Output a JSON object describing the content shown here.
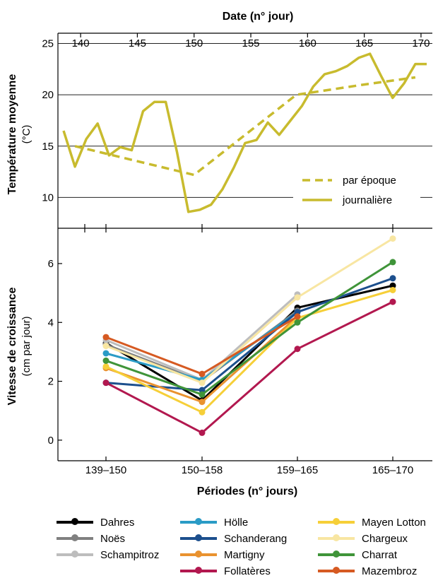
{
  "chart_data": [
    {
      "type": "line",
      "title": "",
      "top_axis_label": "Date (n° jour)",
      "ylabel": "Température moyenne",
      "ylabel_unit": "(°C)",
      "xlim": [
        138,
        171
      ],
      "ylim": [
        7,
        26
      ],
      "xticks": [
        "140",
        "145",
        "150",
        "155",
        "160",
        "165",
        "170"
      ],
      "yticks": [
        "10",
        "15",
        "20",
        "25"
      ],
      "grid": "horizontal",
      "legend_position": "bottom-right",
      "line_color": "#c8bb2e",
      "series": [
        {
          "name": "par époque",
          "style": "dashed",
          "x": [
            139.5,
            150,
            159,
            165,
            169.5
          ],
          "y": [
            15.0,
            12.2,
            20.0,
            21.0,
            21.7
          ]
        },
        {
          "name": "journalière",
          "style": "solid",
          "x": [
            138.5,
            139.5,
            140.5,
            141.5,
            142.5,
            143.5,
            144.5,
            145.5,
            146.5,
            147.5,
            148.5,
            149.5,
            150.5,
            151.5,
            152.5,
            153.5,
            154.5,
            155.5,
            156.5,
            157.5,
            158.5,
            159.5,
            160.5,
            161.5,
            162.5,
            163.5,
            164.5,
            165.5,
            166.5,
            167.5,
            168.5,
            169.5,
            170.5
          ],
          "y": [
            16.5,
            13.0,
            15.7,
            17.2,
            14.1,
            14.9,
            14.6,
            18.4,
            19.3,
            19.3,
            14.4,
            8.6,
            8.8,
            9.3,
            10.8,
            12.9,
            15.3,
            15.6,
            17.3,
            16.1,
            17.5,
            18.9,
            20.8,
            22.0,
            22.3,
            22.8,
            23.6,
            24.0,
            21.8,
            19.7,
            21.1,
            23.0,
            23.0
          ]
        }
      ]
    },
    {
      "type": "line",
      "title": "",
      "xlabel": "Périodes (n° jours)",
      "ylabel": "Vitesse de croissance",
      "ylabel_unit": "(cm par jour)",
      "categories": [
        "139–150",
        "150–158",
        "159–165",
        "165–170"
      ],
      "ylim": [
        -0.7,
        7.2
      ],
      "yticks": [
        "0",
        "2",
        "4",
        "6"
      ],
      "grid": "none",
      "legend_position": "bottom",
      "series": [
        {
          "name": "Dahres",
          "color": "#000000",
          "values": [
            3.3,
            1.35,
            4.5,
            5.25
          ]
        },
        {
          "name": "Noës",
          "color": "#808080",
          "values": [
            3.25,
            2.0,
            4.4,
            null
          ]
        },
        {
          "name": "Schampitroz",
          "color": "#bdbdbd",
          "values": [
            3.4,
            2.05,
            4.95,
            null
          ]
        },
        {
          "name": "Hölle",
          "color": "#2a9bc6",
          "values": [
            2.95,
            2.05,
            4.35,
            null
          ]
        },
        {
          "name": "Schanderang",
          "color": "#1c4f8d",
          "values": [
            1.95,
            1.7,
            4.35,
            5.5
          ]
        },
        {
          "name": "Martigny",
          "color": "#e9922f",
          "values": [
            2.45,
            1.3,
            4.2,
            null
          ]
        },
        {
          "name": "Follatères",
          "color": "#b2184f",
          "values": [
            1.95,
            0.25,
            3.1,
            4.7
          ]
        },
        {
          "name": "Mayen Lotton",
          "color": "#f6cf38",
          "values": [
            2.5,
            0.95,
            4.15,
            5.1
          ]
        },
        {
          "name": "Chargeux",
          "color": "#f8e6a2",
          "values": [
            3.2,
            1.95,
            4.85,
            6.85
          ]
        },
        {
          "name": "Charrat",
          "color": "#3f9439",
          "values": [
            2.7,
            1.55,
            4.0,
            6.05
          ]
        },
        {
          "name": "Mazembroz",
          "color": "#d65a22",
          "values": [
            3.5,
            2.25,
            4.2,
            null
          ]
        }
      ]
    }
  ]
}
